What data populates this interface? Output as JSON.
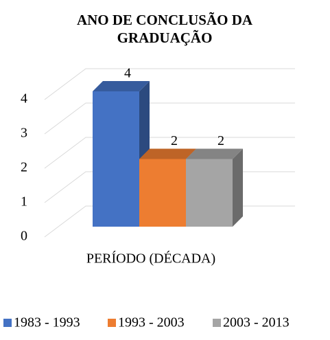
{
  "chart_data": {
    "type": "bar3d",
    "title": "ANO DE CONCLUSÃO DA GRADUAÇÃO",
    "categories": [
      "PERÍODO (DÉCADA)"
    ],
    "series": [
      {
        "name": "1983 - 1993",
        "color": "#4472c4",
        "values": [
          4
        ]
      },
      {
        "name": "1993 - 2003",
        "color": "#ed7d31",
        "values": [
          2
        ]
      },
      {
        "name": "2003 - 2013",
        "color": "#a5a5a5",
        "values": [
          2
        ]
      }
    ],
    "ylim": [
      0,
      4
    ],
    "yticks": [
      0,
      1,
      2,
      3,
      4
    ],
    "grid": true,
    "legend": "bottom"
  }
}
